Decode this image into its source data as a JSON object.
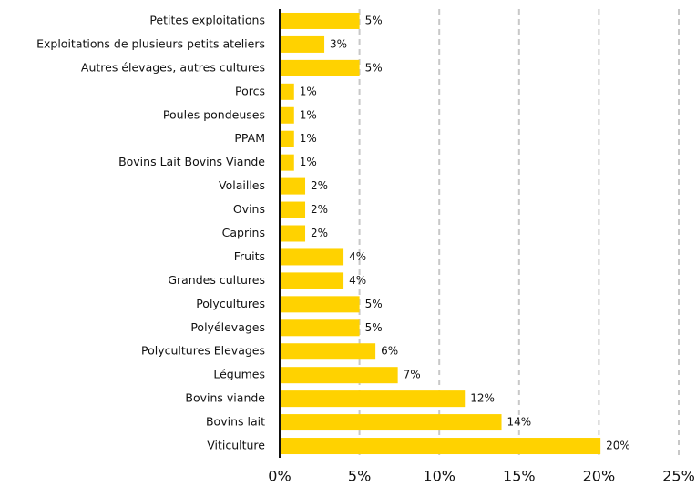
{
  "chart_data": {
    "type": "barh",
    "categories": [
      "Petites exploitations",
      "Exploitations de plusieurs petits ateliers",
      "Autres élevages, autres cultures",
      "Porcs",
      "Poules pondeuses",
      "PPAM",
      "Bovins Lait Bovins Viande",
      "Volailles",
      "Ovins",
      "Caprins",
      "Fruits",
      "Grandes cultures",
      "Polycultures",
      "Polyélevages",
      "Polycultures Elevages",
      "Légumes",
      "Bovins viande",
      "Bovins lait",
      "Viticulture"
    ],
    "values": [
      5.0,
      2.8,
      5.0,
      0.9,
      0.9,
      0.9,
      0.9,
      1.6,
      1.6,
      1.6,
      4.0,
      4.0,
      5.0,
      5.0,
      6.0,
      7.4,
      11.6,
      13.9,
      20.1
    ],
    "value_labels": [
      "5%",
      "3%",
      "5%",
      "1%",
      "1%",
      "1%",
      "1%",
      "2%",
      "2%",
      "2%",
      "4%",
      "4%",
      "5%",
      "5%",
      "6%",
      "7%",
      "12%",
      "14%",
      "20%"
    ],
    "color": "#ffd200",
    "xlim": [
      0,
      25
    ],
    "xticks": [
      {
        "value": 0,
        "label": "0%"
      },
      {
        "value": 5,
        "label": "5%"
      },
      {
        "value": 10,
        "label": "10%"
      },
      {
        "value": 15,
        "label": "15%"
      },
      {
        "value": 20,
        "label": "20%"
      },
      {
        "value": 25,
        "label": "25%"
      }
    ],
    "grid": true
  }
}
